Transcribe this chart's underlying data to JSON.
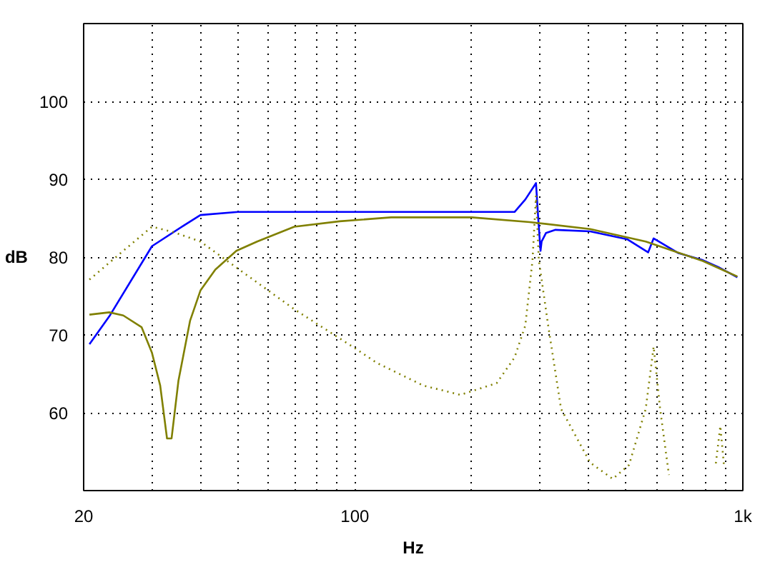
{
  "chart_data": {
    "type": "line",
    "xlabel": "Hz",
    "ylabel": "dB",
    "log": "x",
    "xlim": [
      20,
      1000
    ],
    "ylim": [
      50,
      110
    ],
    "xticks": [
      20,
      {
        "value": 30,
        "label": null
      },
      {
        "value": 40,
        "label": null
      },
      {
        "value": 50,
        "label": null
      },
      {
        "value": 60,
        "label": null
      },
      {
        "value": 70,
        "label": null
      },
      {
        "value": 80,
        "label": null
      },
      {
        "value": 90,
        "label": null
      },
      100,
      {
        "value": 200,
        "label": null
      },
      {
        "value": 300,
        "label": null
      },
      {
        "value": 400,
        "label": null
      },
      {
        "value": 500,
        "label": null
      },
      {
        "value": 600,
        "label": null
      },
      {
        "value": 700,
        "label": null
      },
      {
        "value": 800,
        "label": null
      },
      {
        "value": 900,
        "label": null
      },
      {
        "value": 1000,
        "label": "1k"
      }
    ],
    "yticks": [
      60,
      70,
      80,
      90,
      100
    ],
    "grid": true,
    "series": [
      {
        "color": "#0000ff",
        "line_style": "solid",
        "x": [
          20.7,
          23.3,
          30,
          36.1,
          40,
          50,
          100,
          200,
          258,
          275,
          293,
          297,
          301,
          303,
          311,
          329,
          404,
          503,
          570,
          589,
          683,
          789,
          866,
          968
        ],
        "values": [
          68.8,
          72.4,
          81.4,
          84.0,
          85.4,
          85.8,
          85.8,
          85.8,
          85.8,
          87.4,
          89.5,
          84.9,
          80.8,
          82.0,
          83.1,
          83.5,
          83.3,
          82.3,
          80.6,
          82.4,
          80.5,
          79.6,
          78.7,
          77.4
        ]
      },
      {
        "color": "#808000",
        "line_style": "solid",
        "x": [
          20.7,
          23.3,
          25.3,
          28.2,
          30,
          31.5,
          32.8,
          33.7,
          35.1,
          37.6,
          40,
          43.7,
          49.5,
          56,
          69.8,
          91.4,
          124,
          200,
          282,
          404,
          562,
          789,
          968
        ],
        "values": [
          72.6,
          72.9,
          72.5,
          71.0,
          67.7,
          63.5,
          56.7,
          56.7,
          64.1,
          71.8,
          75.7,
          78.4,
          80.8,
          82.0,
          83.9,
          84.6,
          85.1,
          85.1,
          84.5,
          83.6,
          82.0,
          79.5,
          77.5
        ]
      },
      {
        "color": "#808000",
        "line_style": "dotted",
        "x": [
          20.7,
          25.3,
          30,
          34.1,
          40,
          50,
          69.8,
          100,
          114,
          150,
          187,
          232,
          258,
          275,
          287,
          293,
          298,
          315,
          340,
          404,
          462,
          509,
          562,
          589,
          612,
          645,
          700,
          852,
          875,
          895
        ],
        "values": [
          77.1,
          80.8,
          83.9,
          83.2,
          82.0,
          78.5,
          73.3,
          68.3,
          66.4,
          63.5,
          62.3,
          63.8,
          67.1,
          71.2,
          79.6,
          87.9,
          79.6,
          71.2,
          60.5,
          53.6,
          51.5,
          53.3,
          60.5,
          68.5,
          60.5,
          52.0,
          null,
          53.5,
          58.3,
          53.0
        ]
      }
    ]
  }
}
